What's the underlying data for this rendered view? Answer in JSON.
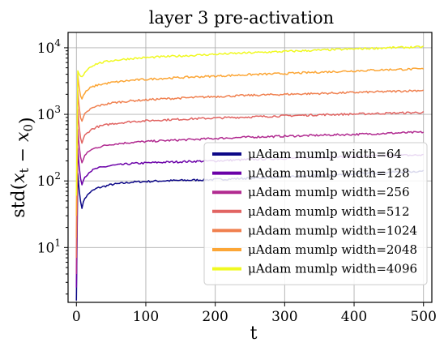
{
  "chart_data": {
    "type": "line",
    "title": "layer 3 pre-activation",
    "xlabel": "t",
    "ylabel": "std(x_t − x_0)",
    "xlim": [
      -12,
      512
    ],
    "ylim": [
      1.5,
      17000
    ],
    "yscale": "log",
    "grid": true,
    "legend_position": "lower-right",
    "x_ticks": [
      0,
      100,
      200,
      300,
      400,
      500
    ],
    "x_tick_labels": [
      "0",
      "100",
      "200",
      "300",
      "400",
      "500"
    ],
    "y_ticks": [
      10,
      100,
      1000,
      10000
    ],
    "y_tick_labels": [
      {
        "base": "10",
        "exp": "1"
      },
      {
        "base": "10",
        "exp": "2"
      },
      {
        "base": "10",
        "exp": "3"
      },
      {
        "base": "10",
        "exp": "4"
      }
    ],
    "series": [
      {
        "name": "μAdam mumlp width=64",
        "color": "#0d0887",
        "x": [
          0,
          2,
          5,
          8,
          12,
          20,
          30,
          50,
          80,
          120,
          170,
          200,
          250,
          300,
          350,
          400,
          450,
          500
        ],
        "y": [
          1.6,
          130,
          55,
          40,
          55,
          68,
          78,
          88,
          96,
          100,
          103,
          105,
          110,
          115,
          120,
          127,
          135,
          140
        ]
      },
      {
        "name": "μAdam mumlp width=128",
        "color": "#6a00a8",
        "x": [
          0,
          2,
          5,
          8,
          12,
          20,
          30,
          50,
          80,
          120,
          170,
          200,
          250,
          300,
          350,
          400,
          450,
          500
        ],
        "y": [
          2.5,
          310,
          120,
          90,
          115,
          140,
          155,
          170,
          182,
          190,
          197,
          200,
          210,
          218,
          225,
          232,
          240,
          245
        ]
      },
      {
        "name": "μAdam mumlp width=256",
        "color": "#b12a90",
        "x": [
          0,
          2,
          5,
          8,
          12,
          20,
          30,
          50,
          80,
          120,
          170,
          200,
          250,
          300,
          350,
          400,
          450,
          500
        ],
        "y": [
          4,
          600,
          250,
          190,
          240,
          290,
          320,
          355,
          380,
          400,
          420,
          435,
          455,
          470,
          485,
          500,
          520,
          540
        ]
      },
      {
        "name": "μAdam mumlp width=512",
        "color": "#e16462",
        "x": [
          0,
          2,
          5,
          8,
          12,
          20,
          30,
          50,
          80,
          120,
          170,
          200,
          250,
          300,
          350,
          400,
          450,
          500
        ],
        "y": [
          7,
          1200,
          480,
          370,
          480,
          580,
          650,
          720,
          780,
          820,
          860,
          880,
          915,
          950,
          985,
          1010,
          1040,
          1070
        ]
      },
      {
        "name": "μAdam mumlp width=1024",
        "color": "#f0804f",
        "x": [
          0,
          2,
          5,
          8,
          12,
          20,
          30,
          50,
          80,
          120,
          170,
          200,
          250,
          300,
          350,
          400,
          450,
          500
        ],
        "y": [
          14,
          2300,
          950,
          780,
          1000,
          1200,
          1330,
          1480,
          1600,
          1700,
          1790,
          1850,
          1930,
          2000,
          2060,
          2130,
          2200,
          2300
        ]
      },
      {
        "name": "μAdam mumlp width=2048",
        "color": "#fca636",
        "x": [
          0,
          2,
          5,
          8,
          12,
          20,
          30,
          50,
          80,
          120,
          170,
          200,
          250,
          300,
          350,
          400,
          450,
          500
        ],
        "y": [
          30,
          4000,
          2000,
          1700,
          2100,
          2500,
          2750,
          3000,
          3250,
          3450,
          3650,
          3750,
          3950,
          4100,
          4300,
          4500,
          4700,
          4800
        ]
      },
      {
        "name": "μAdam mumlp width=4096",
        "color": "#f0f921",
        "x": [
          0,
          2,
          5,
          8,
          12,
          20,
          30,
          50,
          80,
          120,
          170,
          200,
          250,
          300,
          350,
          400,
          450,
          500
        ],
        "y": [
          60,
          4500,
          3800,
          3600,
          4300,
          5200,
          5800,
          6400,
          6900,
          7300,
          7700,
          8000,
          8400,
          8800,
          9200,
          9600,
          10000,
          10300
        ]
      }
    ]
  }
}
